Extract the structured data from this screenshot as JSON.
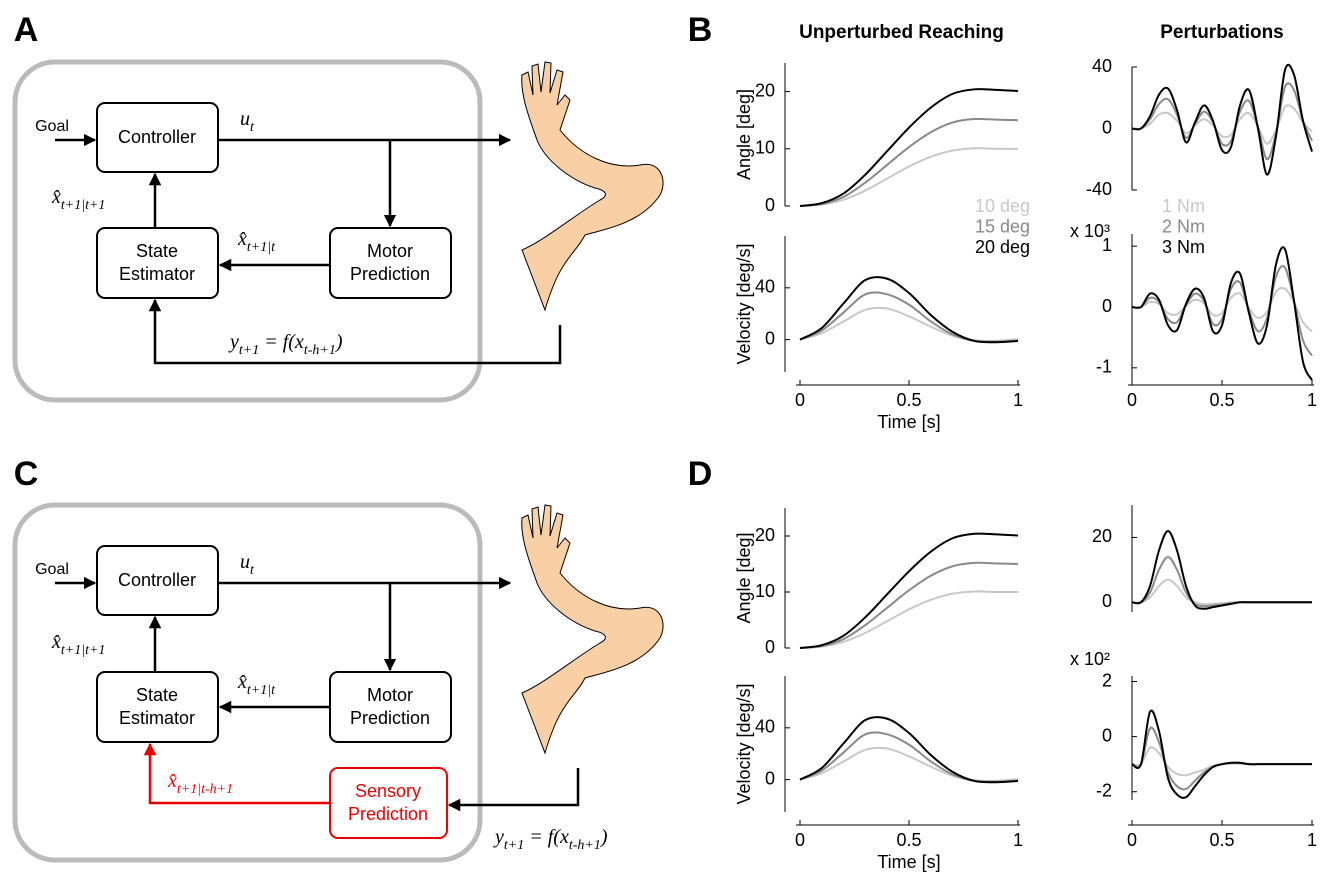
{
  "panel_labels": [
    "A",
    "B",
    "C",
    "D"
  ],
  "diagram_a": {
    "goal": "Goal",
    "controller": "Controller",
    "state_estimator": [
      "State",
      "Estimator"
    ],
    "motor_prediction": [
      "Motor",
      "Prediction"
    ],
    "u": {
      "base": "u",
      "sub": "t"
    },
    "xhat_post": {
      "base": "x̂",
      "sub": "t+1|t+1"
    },
    "xhat_prior": {
      "base": "x̂",
      "sub": "t+1|t"
    },
    "feedback": [
      {
        "t": "y"
      },
      {
        "sub": "t+1"
      },
      {
        "t": " = f(x"
      },
      {
        "sub": "t-h+1"
      },
      {
        "t": ")"
      }
    ]
  },
  "diagram_c": {
    "goal": "Goal",
    "controller": "Controller",
    "state_estimator": [
      "State",
      "Estimator"
    ],
    "motor_prediction": [
      "Motor",
      "Prediction"
    ],
    "sensory_prediction": [
      "Sensory",
      "Prediction"
    ],
    "u": {
      "base": "u",
      "sub": "t"
    },
    "xhat_post": {
      "base": "x̂",
      "sub": "t+1|t+1"
    },
    "xhat_prior": {
      "base": "x̂",
      "sub": "t+1|t"
    },
    "xhat_sensory": {
      "base": "x̂",
      "sub": "t+1|t-h+1"
    },
    "feedback": [
      {
        "t": "y"
      },
      {
        "sub": "t+1"
      },
      {
        "t": " = f(x"
      },
      {
        "sub": "t-h+1"
      },
      {
        "t": ")"
      }
    ]
  },
  "chart_data": [
    {
      "type": "line",
      "title": "Unperturbed Reaching",
      "ylabel": "Angle [deg]",
      "legend": true,
      "x": [
        0,
        0.1,
        0.2,
        0.3,
        0.4,
        0.5,
        0.6,
        0.7,
        0.8,
        0.9,
        1
      ],
      "xlim": [
        0,
        1
      ],
      "ylim": [
        0,
        25
      ],
      "yticks": [
        0,
        10,
        20
      ],
      "series": [
        {
          "name": "10 deg",
          "color": "#c8c8c8",
          "values": [
            0,
            0.25,
            1.1,
            2.7,
            4.8,
            6.9,
            8.6,
            9.7,
            10.1,
            10.0,
            10.0
          ]
        },
        {
          "name": "15 deg",
          "color": "#8a8a8a",
          "values": [
            0,
            0.35,
            1.6,
            4.1,
            7.2,
            10.3,
            12.9,
            14.6,
            15.2,
            15.1,
            15.0
          ]
        },
        {
          "name": "20 deg",
          "color": "#000000",
          "values": [
            0,
            0.5,
            2.2,
            5.5,
            9.6,
            13.7,
            17.2,
            19.6,
            20.4,
            20.3,
            20.1
          ]
        }
      ]
    },
    {
      "type": "line",
      "ylabel": "Velocity [deg/s]",
      "xlabel": "Time [s]",
      "x": [
        0,
        0.1,
        0.2,
        0.3,
        0.4,
        0.5,
        0.6,
        0.7,
        0.8,
        0.9,
        1
      ],
      "xlim": [
        0,
        1
      ],
      "ylim": [
        -25,
        80
      ],
      "xticks": [
        0,
        0.5,
        1
      ],
      "yticks": [
        0,
        40
      ],
      "series": [
        {
          "color": "#c8c8c8",
          "values": [
            0,
            5,
            14,
            23,
            24,
            18,
            10,
            3,
            -0.5,
            -1,
            0.5
          ]
        },
        {
          "color": "#8a8a8a",
          "values": [
            0,
            7,
            21,
            35,
            35,
            27,
            14,
            4,
            -1,
            -1.5,
            -1
          ]
        },
        {
          "color": "#000000",
          "values": [
            0,
            9,
            28,
            46,
            47,
            36,
            19,
            6,
            -1,
            -2,
            -1
          ]
        }
      ]
    },
    {
      "type": "line",
      "title": "Perturbations",
      "legend": true,
      "x": [
        0,
        0.05,
        0.1,
        0.15,
        0.2,
        0.25,
        0.3,
        0.35,
        0.4,
        0.45,
        0.5,
        0.55,
        0.6,
        0.65,
        0.7,
        0.75,
        0.8,
        0.85,
        0.9,
        0.95,
        1
      ],
      "xlim": [
        0,
        1
      ],
      "ylim": [
        -40,
        40
      ],
      "yticks": [
        -40,
        0,
        40
      ],
      "series": [
        {
          "name": "1 Nm",
          "color": "#c8c8c8",
          "values": [
            0,
            0,
            3,
            9,
            10,
            5,
            -3,
            2,
            6,
            2,
            -5,
            -4,
            6,
            10,
            1,
            -10,
            -1,
            14,
            13,
            4,
            -2
          ]
        },
        {
          "name": "2 Nm",
          "color": "#8a8a8a",
          "values": [
            0,
            0,
            6,
            16,
            19,
            9,
            -6,
            3,
            11,
            4,
            -10,
            -8,
            11,
            18,
            1,
            -20,
            -3,
            27,
            25,
            5,
            -8
          ]
        },
        {
          "name": "3 Nm",
          "color": "#000000",
          "values": [
            0,
            0,
            8,
            22,
            26,
            12,
            -9,
            4,
            15,
            5,
            -14,
            -12,
            15,
            25,
            0,
            -30,
            -5,
            38,
            35,
            5,
            -15
          ]
        }
      ]
    },
    {
      "type": "line",
      "y_multiplier": "x 10³",
      "x": [
        0,
        0.05,
        0.1,
        0.15,
        0.2,
        0.25,
        0.3,
        0.35,
        0.4,
        0.45,
        0.5,
        0.55,
        0.6,
        0.65,
        0.7,
        0.75,
        0.8,
        0.85,
        0.9,
        0.95,
        1
      ],
      "xlim": [
        0,
        1
      ],
      "ylim": [
        -1.2,
        1.2
      ],
      "xticks": [
        0,
        0.5,
        1
      ],
      "yticks": [
        -1,
        0,
        1
      ],
      "series": [
        {
          "color": "#c8c8c8",
          "values": [
            0,
            0,
            0.08,
            0.05,
            -0.1,
            -0.12,
            0.02,
            0.12,
            0.06,
            -0.13,
            -0.1,
            0.15,
            0.22,
            -0.02,
            -0.18,
            -0.08,
            0.25,
            0.3,
            0.08,
            -0.25,
            -0.4
          ]
        },
        {
          "color": "#8a8a8a",
          "values": [
            0,
            0,
            0.15,
            0.08,
            -0.2,
            -0.25,
            0.03,
            0.22,
            0.1,
            -0.28,
            -0.2,
            0.3,
            0.4,
            -0.06,
            -0.4,
            -0.18,
            0.5,
            0.65,
            0.1,
            -0.55,
            -0.8
          ]
        },
        {
          "color": "#000000",
          "values": [
            0,
            0,
            0.22,
            0.12,
            -0.3,
            -0.38,
            0.05,
            0.3,
            0.15,
            -0.4,
            -0.3,
            0.4,
            0.55,
            -0.1,
            -0.6,
            -0.3,
            0.7,
            0.95,
            0.1,
            -0.9,
            -1.2
          ]
        }
      ]
    },
    {
      "type": "line",
      "ylabel": "Angle [deg]",
      "x": [
        0,
        0.1,
        0.2,
        0.3,
        0.4,
        0.5,
        0.6,
        0.7,
        0.8,
        0.9,
        1
      ],
      "xlim": [
        0,
        1
      ],
      "ylim": [
        0,
        25
      ],
      "yticks": [
        0,
        10,
        20
      ],
      "series": [
        {
          "color": "#c8c8c8",
          "values": [
            0,
            0.25,
            1.1,
            2.7,
            4.8,
            6.9,
            8.6,
            9.7,
            10.1,
            10.0,
            10.0
          ]
        },
        {
          "color": "#8a8a8a",
          "values": [
            0,
            0.35,
            1.6,
            4.1,
            7.2,
            10.3,
            12.9,
            14.6,
            15.2,
            15.1,
            15.0
          ]
        },
        {
          "color": "#000000",
          "values": [
            0,
            0.5,
            2.2,
            5.5,
            9.6,
            13.7,
            17.2,
            19.6,
            20.4,
            20.3,
            20.1
          ]
        }
      ]
    },
    {
      "type": "line",
      "ylabel": "Velocity [deg/s]",
      "xlabel": "Time [s]",
      "x": [
        0,
        0.1,
        0.2,
        0.3,
        0.4,
        0.5,
        0.6,
        0.7,
        0.8,
        0.9,
        1
      ],
      "xlim": [
        0,
        1
      ],
      "ylim": [
        -25,
        80
      ],
      "xticks": [
        0,
        0.5,
        1
      ],
      "yticks": [
        0,
        40
      ],
      "series": [
        {
          "color": "#c8c8c8",
          "values": [
            0,
            5,
            14,
            23,
            24,
            18,
            10,
            3,
            -0.5,
            -1,
            0.5
          ]
        },
        {
          "color": "#8a8a8a",
          "values": [
            0,
            7,
            21,
            35,
            35,
            27,
            14,
            4,
            -1,
            -1.5,
            -1
          ]
        },
        {
          "color": "#000000",
          "values": [
            0,
            9,
            28,
            46,
            47,
            36,
            19,
            6,
            -1,
            -2,
            -1
          ]
        }
      ]
    },
    {
      "type": "line",
      "x": [
        0,
        0.05,
        0.1,
        0.15,
        0.2,
        0.25,
        0.3,
        0.35,
        0.4,
        0.45,
        0.5,
        0.55,
        0.6,
        0.65,
        0.7,
        0.75,
        0.8,
        0.85,
        0.9,
        0.95,
        1
      ],
      "xlim": [
        0,
        1
      ],
      "ylim": [
        -3,
        30
      ],
      "yticks": [
        0,
        20
      ],
      "series": [
        {
          "color": "#c8c8c8",
          "values": [
            0,
            0,
            1.5,
            5,
            7,
            5,
            1.5,
            0,
            -0.6,
            -0.5,
            -0.3,
            0,
            0,
            0,
            0,
            0,
            0,
            0,
            0,
            0,
            0
          ]
        },
        {
          "color": "#8a8a8a",
          "values": [
            0,
            0,
            3,
            10,
            14,
            10,
            3,
            -0.5,
            -1.2,
            -1,
            -0.7,
            -0.3,
            0,
            0,
            0,
            0,
            0,
            0,
            0,
            0,
            0
          ]
        },
        {
          "color": "#000000",
          "values": [
            0,
            0,
            5,
            16,
            22,
            16,
            5,
            -1,
            -2,
            -1.5,
            -1,
            -0.5,
            0,
            0,
            0,
            0,
            0,
            0,
            0,
            0,
            0
          ]
        }
      ]
    },
    {
      "type": "line",
      "y_multiplier": "x 10²",
      "x": [
        0,
        0.05,
        0.1,
        0.15,
        0.2,
        0.25,
        0.3,
        0.35,
        0.4,
        0.45,
        0.5,
        0.55,
        0.6,
        0.65,
        0.7,
        0.75,
        0.8,
        0.85,
        0.9,
        0.95,
        1
      ],
      "xlim": [
        0,
        1
      ],
      "ylim": [
        -2.3,
        2.2
      ],
      "xticks": [
        0,
        0.5,
        1
      ],
      "yticks": [
        -2,
        0,
        2
      ],
      "series": [
        {
          "color": "#c8c8c8",
          "values": [
            -1,
            -1,
            -0.4,
            -0.6,
            -1.1,
            -1.35,
            -1.4,
            -1.3,
            -1.2,
            -1.05,
            -1,
            -0.98,
            -0.98,
            -1,
            -1,
            -1,
            -1,
            -1,
            -1,
            -1,
            -1
          ]
        },
        {
          "color": "#8a8a8a",
          "values": [
            -1,
            -1,
            0.3,
            -0.2,
            -1.3,
            -1.8,
            -1.9,
            -1.6,
            -1.3,
            -1.1,
            -1,
            -0.96,
            -0.96,
            -1,
            -1,
            -1,
            -1,
            -1,
            -1,
            -1,
            -1
          ]
        },
        {
          "color": "#000000",
          "values": [
            -1,
            -1,
            0.9,
            0.2,
            -1.5,
            -2.1,
            -2.2,
            -1.8,
            -1.4,
            -1.1,
            -1,
            -0.95,
            -0.95,
            -1,
            -1,
            -1,
            -1,
            -1,
            -1,
            -1,
            -1
          ]
        }
      ]
    }
  ]
}
